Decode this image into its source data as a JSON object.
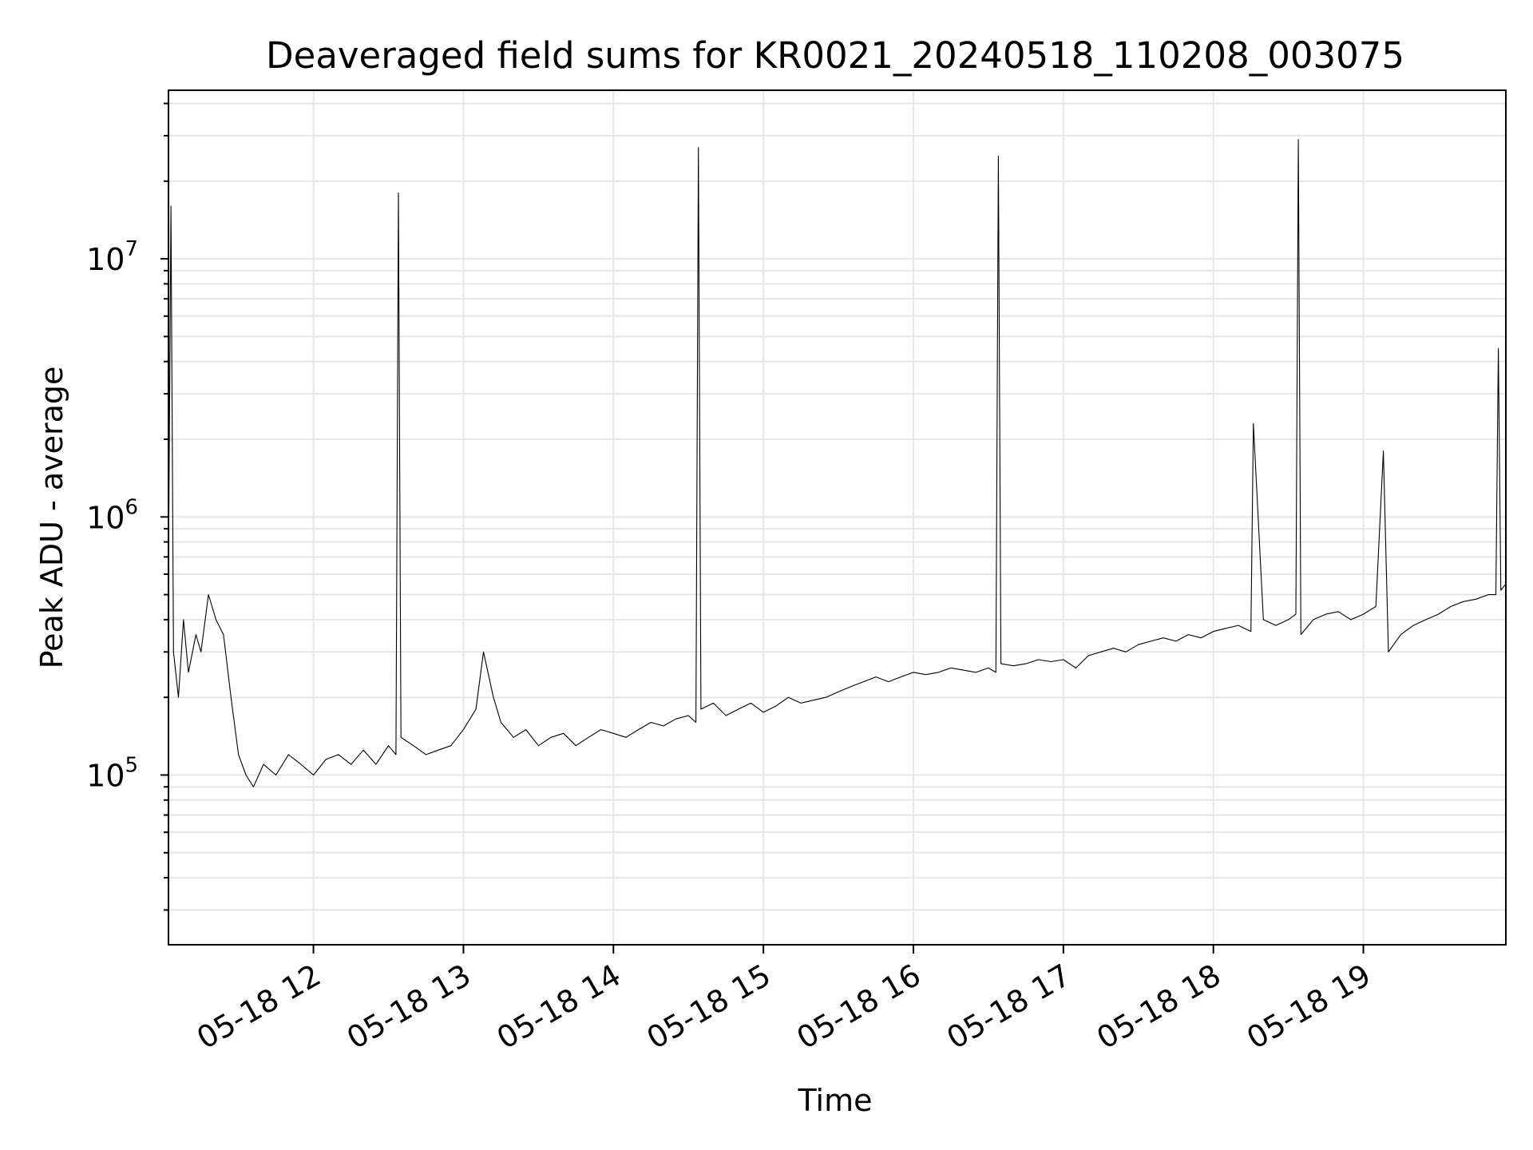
{
  "chart_data": {
    "type": "line",
    "title": "Deaveraged field sums for KR0021_20240518_110208_003075",
    "xlabel": "Time",
    "ylabel": "Peak ADU - average",
    "y_scale": "log",
    "grid": true,
    "line_color": "#000000",
    "xlim": [
      "2024-05-18 11:02",
      "2024-05-18 19:57"
    ],
    "ylim": [
      22000,
      45000000
    ],
    "x_ticks": [
      "05-18 12",
      "05-18 13",
      "05-18 14",
      "05-18 15",
      "05-18 16",
      "05-18 17",
      "05-18 18",
      "05-18 19"
    ],
    "x_tick_times": [
      "2024-05-18 12:00",
      "2024-05-18 13:00",
      "2024-05-18 14:00",
      "2024-05-18 15:00",
      "2024-05-18 16:00",
      "2024-05-18 17:00",
      "2024-05-18 18:00",
      "2024-05-18 19:00"
    ],
    "y_ticks": [
      {
        "value": 100000,
        "base": "10",
        "exp": "5"
      },
      {
        "value": 1000000,
        "base": "10",
        "exp": "6"
      },
      {
        "value": 10000000,
        "base": "10",
        "exp": "7"
      }
    ],
    "series": [
      {
        "x": [
          "2024-05-18 11:02",
          "2024-05-18 11:03",
          "2024-05-18 11:04",
          "2024-05-18 11:06",
          "2024-05-18 11:08",
          "2024-05-18 11:10",
          "2024-05-18 11:13",
          "2024-05-18 11:15",
          "2024-05-18 11:18",
          "2024-05-18 11:21",
          "2024-05-18 11:24",
          "2024-05-18 11:27",
          "2024-05-18 11:30",
          "2024-05-18 11:33",
          "2024-05-18 11:36",
          "2024-05-18 11:40",
          "2024-05-18 11:45",
          "2024-05-18 11:50",
          "2024-05-18 11:55",
          "2024-05-18 12:00",
          "2024-05-18 12:05",
          "2024-05-18 12:10",
          "2024-05-18 12:15",
          "2024-05-18 12:20",
          "2024-05-18 12:25",
          "2024-05-18 12:30",
          "2024-05-18 12:33",
          "2024-05-18 12:34",
          "2024-05-18 12:35",
          "2024-05-18 12:40",
          "2024-05-18 12:45",
          "2024-05-18 12:50",
          "2024-05-18 12:55",
          "2024-05-18 13:00",
          "2024-05-18 13:05",
          "2024-05-18 13:08",
          "2024-05-18 13:12",
          "2024-05-18 13:15",
          "2024-05-18 13:20",
          "2024-05-18 13:25",
          "2024-05-18 13:30",
          "2024-05-18 13:35",
          "2024-05-18 13:40",
          "2024-05-18 13:45",
          "2024-05-18 13:50",
          "2024-05-18 13:55",
          "2024-05-18 14:00",
          "2024-05-18 14:05",
          "2024-05-18 14:10",
          "2024-05-18 14:15",
          "2024-05-18 14:20",
          "2024-05-18 14:25",
          "2024-05-18 14:30",
          "2024-05-18 14:33",
          "2024-05-18 14:34",
          "2024-05-18 14:35",
          "2024-05-18 14:40",
          "2024-05-18 14:45",
          "2024-05-18 14:50",
          "2024-05-18 14:55",
          "2024-05-18 15:00",
          "2024-05-18 15:05",
          "2024-05-18 15:10",
          "2024-05-18 15:15",
          "2024-05-18 15:20",
          "2024-05-18 15:25",
          "2024-05-18 15:30",
          "2024-05-18 15:35",
          "2024-05-18 15:40",
          "2024-05-18 15:45",
          "2024-05-18 15:50",
          "2024-05-18 15:55",
          "2024-05-18 16:00",
          "2024-05-18 16:05",
          "2024-05-18 16:10",
          "2024-05-18 16:15",
          "2024-05-18 16:20",
          "2024-05-18 16:25",
          "2024-05-18 16:30",
          "2024-05-18 16:33",
          "2024-05-18 16:34",
          "2024-05-18 16:35",
          "2024-05-18 16:40",
          "2024-05-18 16:45",
          "2024-05-18 16:50",
          "2024-05-18 16:55",
          "2024-05-18 17:00",
          "2024-05-18 17:05",
          "2024-05-18 17:10",
          "2024-05-18 17:15",
          "2024-05-18 17:20",
          "2024-05-18 17:25",
          "2024-05-18 17:30",
          "2024-05-18 17:35",
          "2024-05-18 17:40",
          "2024-05-18 17:45",
          "2024-05-18 17:50",
          "2024-05-18 17:55",
          "2024-05-18 18:00",
          "2024-05-18 18:05",
          "2024-05-18 18:10",
          "2024-05-18 18:15",
          "2024-05-18 18:16",
          "2024-05-18 18:20",
          "2024-05-18 18:25",
          "2024-05-18 18:30",
          "2024-05-18 18:33",
          "2024-05-18 18:34",
          "2024-05-18 18:35",
          "2024-05-18 18:40",
          "2024-05-18 18:45",
          "2024-05-18 18:50",
          "2024-05-18 18:55",
          "2024-05-18 19:00",
          "2024-05-18 19:05",
          "2024-05-18 19:08",
          "2024-05-18 19:10",
          "2024-05-18 19:15",
          "2024-05-18 19:20",
          "2024-05-18 19:25",
          "2024-05-18 19:30",
          "2024-05-18 19:35",
          "2024-05-18 19:40",
          "2024-05-18 19:45",
          "2024-05-18 19:50",
          "2024-05-18 19:53",
          "2024-05-18 19:54",
          "2024-05-18 19:55",
          "2024-05-18 19:57"
        ],
        "y": [
          600000,
          16000000,
          300000,
          200000,
          400000,
          250000,
          350000,
          300000,
          500000,
          400000,
          350000,
          200000,
          120000,
          100000,
          90000,
          110000,
          100000,
          120000,
          110000,
          100000,
          115000,
          120000,
          110000,
          125000,
          110000,
          130000,
          120000,
          18000000,
          140000,
          130000,
          120000,
          125000,
          130000,
          150000,
          180000,
          300000,
          200000,
          160000,
          140000,
          150000,
          130000,
          140000,
          145000,
          130000,
          140000,
          150000,
          145000,
          140000,
          150000,
          160000,
          155000,
          165000,
          170000,
          160000,
          27000000,
          180000,
          190000,
          170000,
          180000,
          190000,
          175000,
          185000,
          200000,
          190000,
          195000,
          200000,
          210000,
          220000,
          230000,
          240000,
          230000,
          240000,
          250000,
          245000,
          250000,
          260000,
          255000,
          250000,
          260000,
          250000,
          25000000,
          270000,
          265000,
          270000,
          280000,
          275000,
          280000,
          260000,
          290000,
          300000,
          310000,
          300000,
          320000,
          330000,
          340000,
          330000,
          350000,
          340000,
          360000,
          370000,
          380000,
          360000,
          2300000,
          400000,
          380000,
          400000,
          420000,
          29000000,
          350000,
          400000,
          420000,
          430000,
          400000,
          420000,
          450000,
          1800000,
          300000,
          350000,
          380000,
          400000,
          420000,
          450000,
          470000,
          480000,
          500000,
          500000,
          4500000,
          520000,
          550000
        ]
      }
    ]
  }
}
